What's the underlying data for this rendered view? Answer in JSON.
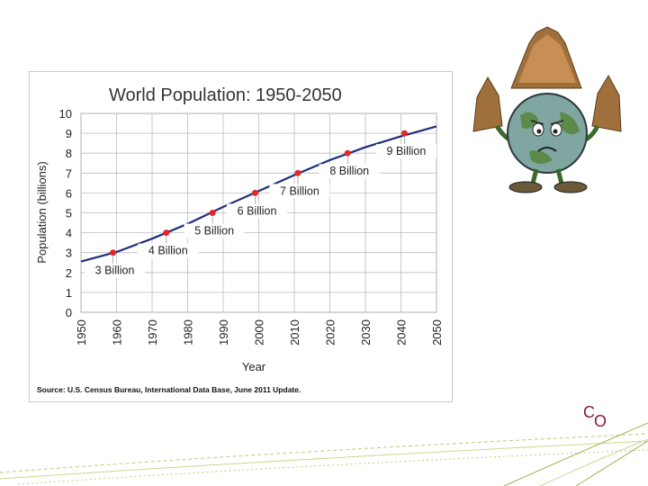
{
  "slide": {
    "logo_text": "CO",
    "cartoon_icon": "worried-earth-cartoon-icon"
  },
  "colors": {
    "line": "#1f2e7a",
    "marker": "#e3262a",
    "grid": "#bdbdbd",
    "text": "#222222",
    "logo": "#8a1a3a"
  },
  "chart_data": {
    "type": "line",
    "title": "World Population: 1950-2050",
    "xlabel": "Year",
    "ylabel": "Population  (billions)",
    "source": "Source: U.S. Census Bureau, International Data Base, June 2011 Update.",
    "xlim": [
      1950,
      2050
    ],
    "ylim": [
      0,
      10
    ],
    "grid": true,
    "x_ticks": [
      "1950",
      "1960",
      "1970",
      "1980",
      "1990",
      "2000",
      "2010",
      "2020",
      "2030",
      "2040",
      "2050"
    ],
    "y_ticks": [
      "0",
      "1",
      "2",
      "3",
      "4",
      "5",
      "6",
      "7",
      "8",
      "9",
      "10"
    ],
    "series": [
      {
        "x": [
          1950,
          1960,
          1970,
          1980,
          1990,
          2000,
          2010,
          2020,
          2030,
          2040,
          2050
        ],
        "y": [
          2.55,
          3.03,
          3.7,
          4.45,
          5.3,
          6.1,
          6.9,
          7.65,
          8.3,
          8.85,
          9.35
        ]
      }
    ],
    "milestones": [
      {
        "year": 1959,
        "value": 3,
        "label": "3 Billion"
      },
      {
        "year": 1974,
        "value": 4,
        "label": "4 Billion"
      },
      {
        "year": 1987,
        "value": 5,
        "label": "5 Billion"
      },
      {
        "year": 1999,
        "value": 6,
        "label": "6 Billion"
      },
      {
        "year": 2011,
        "value": 7,
        "label": "7 Billion"
      },
      {
        "year": 2025,
        "value": 8,
        "label": "8 Billion"
      },
      {
        "year": 2041,
        "value": 9,
        "label": "9 Billion"
      }
    ]
  }
}
